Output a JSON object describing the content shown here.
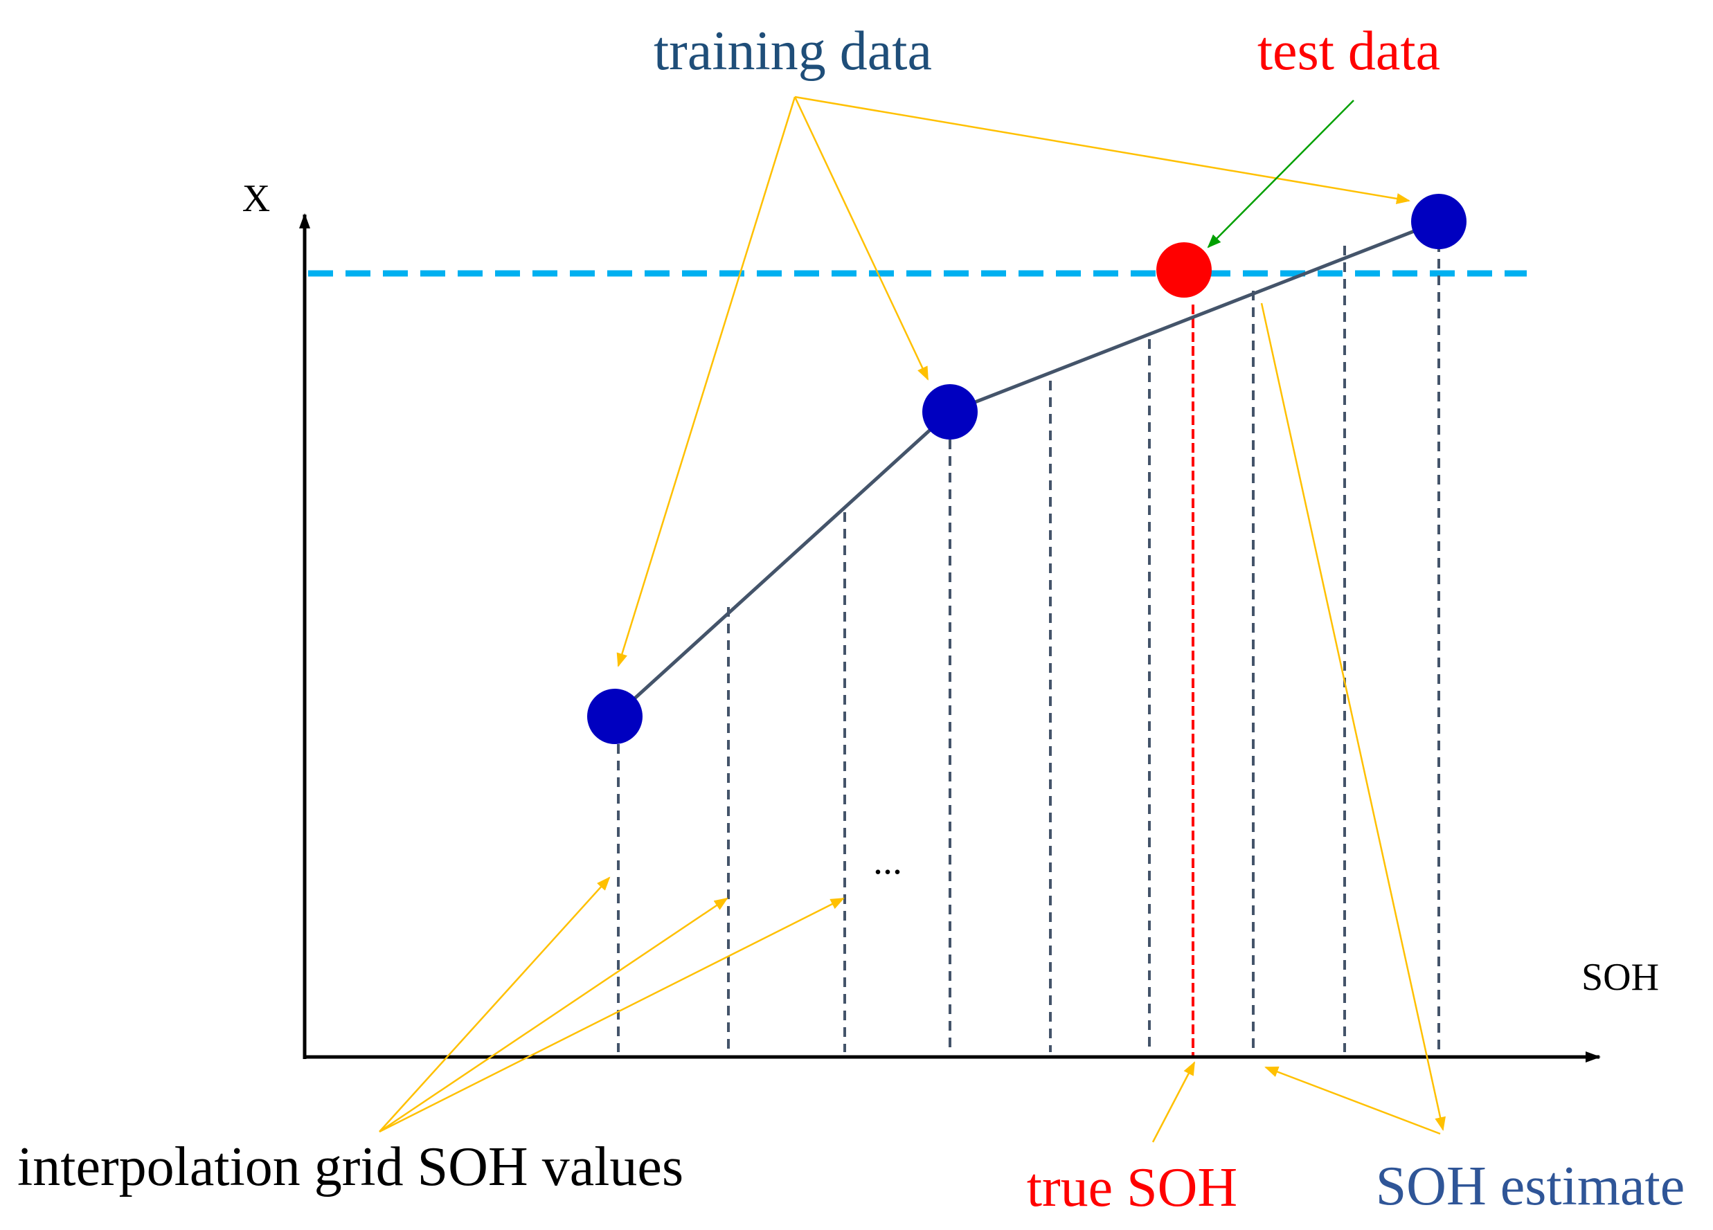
{
  "labels": {
    "training_data": "training data",
    "test_data": "test data",
    "x_axis": "SOH",
    "y_axis": "X",
    "ellipsis": "...",
    "interp_grid": "interpolation grid SOH values",
    "true_soh": "true SOH",
    "soh_estimate": "SOH estimate"
  },
  "colors": {
    "training_label": "#1F4E79",
    "test_label": "#FF0000",
    "true_soh_label": "#FF0000",
    "estimate_label": "#2F5597",
    "training_point": "#0000C0",
    "test_point": "#FF0000",
    "curve": "#44546A",
    "dashed_grid": "#44546A",
    "test_level_line": "#00B0F0",
    "annotation_arrow": "#FFC000",
    "test_arrow": "#00A000",
    "axis": "#000000",
    "text": "#000000"
  }
}
